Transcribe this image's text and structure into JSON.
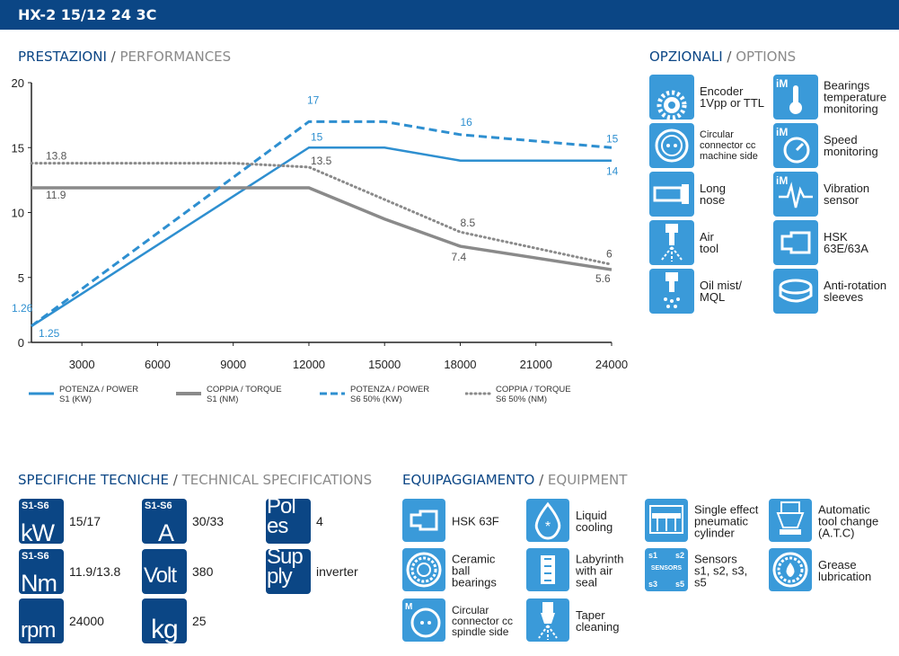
{
  "header": {
    "title": "HX-2 15/12 24 3C"
  },
  "performance": {
    "title_it": "PRESTAZIONI",
    "title_en": "PERFORMANCES"
  },
  "chart_data": {
    "type": "line",
    "xlim": [
      1000,
      24000
    ],
    "ylim": [
      0,
      20
    ],
    "x_ticks": [
      3000,
      6000,
      9000,
      12000,
      15000,
      18000,
      21000,
      24000
    ],
    "x_tick_labels": [
      "3000",
      "6000",
      "9000",
      "12000",
      "15000",
      "18000",
      "21000",
      "24000"
    ],
    "y_ticks": [
      0,
      5,
      10,
      15,
      20
    ],
    "y_tick_labels": [
      "0",
      "5",
      "10",
      "15",
      "20"
    ],
    "grid": false,
    "legend_position": "bottom",
    "series": [
      {
        "name": "POTENZA / POWER",
        "name2": "S1 (KW)",
        "style": "solid",
        "color": "#2e8fd0",
        "x": [
          1000,
          12000,
          15000,
          18000,
          24000
        ],
        "y": [
          1.25,
          15,
          15,
          14,
          14
        ]
      },
      {
        "name": "COPPIA / TORQUE",
        "name2": "S1 (NM)",
        "style": "solid",
        "color": "#8a8a8a",
        "x": [
          1000,
          12000,
          15000,
          18000,
          24000
        ],
        "y": [
          11.9,
          11.9,
          9.5,
          7.4,
          5.6
        ]
      },
      {
        "name": "POTENZA / POWER",
        "name2": "S6 50% (KW)",
        "style": "dashed",
        "color": "#2e8fd0",
        "x": [
          1000,
          12000,
          15000,
          18000,
          24000
        ],
        "y": [
          1.26,
          17,
          17,
          16,
          15
        ]
      },
      {
        "name": "COPPIA / TORQUE",
        "name2": "S6 50% (NM)",
        "style": "dotted",
        "color": "#8a8a8a",
        "x": [
          1000,
          9000,
          12000,
          18000,
          24000
        ],
        "y": [
          13.8,
          13.8,
          13.5,
          8.5,
          6
        ]
      }
    ],
    "annotations": [
      {
        "text": "1.26",
        "x": 1000,
        "y": 1.26,
        "color": "#2e8fd0"
      },
      {
        "text": "1.25",
        "x": 1000,
        "y": 1.25,
        "color": "#2e8fd0"
      },
      {
        "text": "13.8",
        "x": 1000,
        "y": 13.8,
        "color": "#555555"
      },
      {
        "text": "11.9",
        "x": 1000,
        "y": 11.9,
        "color": "#555555"
      },
      {
        "text": "17",
        "x": 12000,
        "y": 17,
        "color": "#2e8fd0"
      },
      {
        "text": "15",
        "x": 12000,
        "y": 15,
        "color": "#2e8fd0"
      },
      {
        "text": "13.5",
        "x": 12000,
        "y": 13.5,
        "color": "#555555"
      },
      {
        "text": "16",
        "x": 18000,
        "y": 16,
        "color": "#2e8fd0"
      },
      {
        "text": "8.5",
        "x": 18000,
        "y": 8.5,
        "color": "#555555"
      },
      {
        "text": "7.4",
        "x": 18000,
        "y": 7.4,
        "color": "#555555"
      },
      {
        "text": "15",
        "x": 24000,
        "y": 15,
        "color": "#2e8fd0"
      },
      {
        "text": "14",
        "x": 24000,
        "y": 14,
        "color": "#2e8fd0"
      },
      {
        "text": "6",
        "x": 24000,
        "y": 6,
        "color": "#555555"
      },
      {
        "text": "5.6",
        "x": 24000,
        "y": 5.6,
        "color": "#555555"
      }
    ]
  },
  "options": {
    "title_it": "OPZIONALI",
    "title_en": "OPTIONS",
    "items": [
      {
        "label": "Encoder\n1Vpp or TTL",
        "icon": "gear-icon"
      },
      {
        "label": "Bearings\ntemperature\nmonitoring",
        "icon": "thermometer-icon",
        "badge": "iM"
      },
      {
        "label": "Circular\nconnector cc\nmachine side",
        "icon": "connector-icon"
      },
      {
        "label": "Speed\nmonitoring",
        "icon": "speedometer-icon",
        "badge": "iM"
      },
      {
        "label": "Long\nnose",
        "icon": "long-nose-icon"
      },
      {
        "label": "Vibration\nsensor",
        "icon": "vibration-icon",
        "badge": "iM"
      },
      {
        "label": "Air\ntool",
        "icon": "air-tool-icon"
      },
      {
        "label": "HSK\n63E/63A",
        "icon": "hsk-icon"
      },
      {
        "label": "Oil mist/\nMQL",
        "icon": "oil-mist-icon"
      },
      {
        "label": "Anti-rotation\nsleeves",
        "icon": "anti-rotation-icon"
      }
    ]
  },
  "specs": {
    "title_it": "SPECIFICHE TECNICHE",
    "title_en": "TECHNICAL SPECIFICATIONS",
    "items": [
      {
        "tag": "S1-S6",
        "symbol": "kW",
        "value": "15/17"
      },
      {
        "tag": "S1-S6",
        "symbol": "A",
        "value": "30/33"
      },
      {
        "tag": "",
        "symbol": "Pol\nes",
        "value": "4"
      },
      {
        "tag": "S1-S6",
        "symbol": "Nm",
        "value": "11.9/13.8"
      },
      {
        "tag": "",
        "symbol": "Volt",
        "value": "380"
      },
      {
        "tag": "",
        "symbol": "Sup\nply",
        "value": "inverter"
      },
      {
        "tag": "",
        "symbol": "rpm",
        "value": "24000"
      },
      {
        "tag": "",
        "symbol": "kg",
        "value": "25"
      }
    ]
  },
  "equipment": {
    "title_it": "EQUIPAGGIAMENTO",
    "title_en": "EQUIPMENT",
    "items": [
      {
        "label": "HSK 63F",
        "icon": "hsk-icon"
      },
      {
        "label": "Liquid\ncooling",
        "icon": "liquid-cooling-icon"
      },
      {
        "label": "Single effect\npneumatic\ncylinder",
        "icon": "pneumatic-cylinder-icon"
      },
      {
        "label": "Automatic\ntool change\n(A.T.C)",
        "icon": "tool-change-icon"
      },
      {
        "label": "Ceramic\nball\nbearings",
        "icon": "bearing-icon"
      },
      {
        "label": "Labyrinth\nwith air\nseal",
        "icon": "labyrinth-icon"
      },
      {
        "label": "Sensors\ns1, s2, s3, s5",
        "icon": "sensors-icon",
        "sensor_tags": [
          "s1",
          "s2",
          "SENSORS",
          "s3",
          "s5"
        ]
      },
      {
        "label": "Grease\nlubrication",
        "icon": "grease-bearing-icon"
      },
      {
        "label": "Circular\nconnector cc\nspindle side",
        "icon": "connector-icon",
        "badge": "M"
      },
      {
        "label": "Taper\ncleaning",
        "icon": "taper-cleaning-icon"
      }
    ]
  }
}
